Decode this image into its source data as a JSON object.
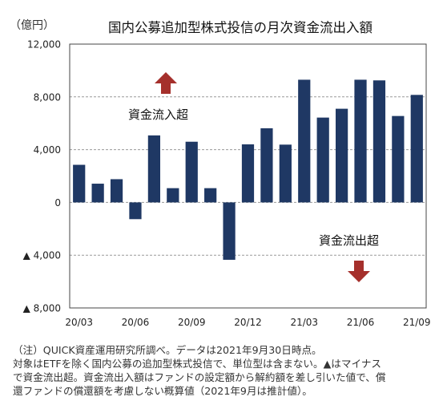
{
  "chart_data": {
    "type": "bar",
    "title": "国内公募追加型株式投信の月次資金流出入額",
    "unit_label": "（億円）",
    "categories": [
      "2020-03",
      "2020-04",
      "2020-05",
      "2020-06",
      "2020-07",
      "2020-08",
      "2020-09",
      "2020-10",
      "2020-11",
      "2020-12",
      "2021-01",
      "2021-02",
      "2021-03",
      "2021-04",
      "2021-05",
      "2021-06",
      "2021-07",
      "2021-08",
      "2021-09"
    ],
    "values": [
      2850,
      1420,
      1760,
      -1270,
      5080,
      1080,
      4600,
      1080,
      -4350,
      4400,
      5620,
      4380,
      9300,
      6430,
      7100,
      9300,
      9250,
      6550,
      8150
    ],
    "x_tick_labels": [
      {
        "category": "2020-03",
        "label": "20/03"
      },
      {
        "category": "2020-06",
        "label": "20/06"
      },
      {
        "category": "2020-09",
        "label": "20/09"
      },
      {
        "category": "2020-12",
        "label": "20/12"
      },
      {
        "category": "2021-03",
        "label": "21/03"
      },
      {
        "category": "2021-06",
        "label": "21/06"
      },
      {
        "category": "2021-09",
        "label": "21/09"
      }
    ],
    "y_ticks": [
      12000,
      8000,
      4000,
      0,
      -4000,
      -8000
    ],
    "y_tick_labels": [
      "12,000",
      "8,000",
      "4,000",
      "0",
      "▲ 4,000",
      "▲ 8,000"
    ],
    "ylim": [
      -8000,
      12000
    ],
    "grid": true,
    "bar_color": "#1f3864",
    "annotations": [
      {
        "text": "資金流入超",
        "arrow": "up",
        "arrow_color": "#a5302c"
      },
      {
        "text": "資金流出超",
        "arrow": "down",
        "arrow_color": "#a5302c"
      }
    ]
  },
  "notes": [
    "（注）QUICK資産運用研究所調べ。データは2021年9月30日時点。",
    "対象はETFを除く国内公募の追加型株式投信で、単位型は含まない。▲はマイナス",
    "で資金流出超。資金流出入額はファンドの設定額から解約額を差し引いた値で、償",
    "還ファンドの償還額を考慮しない概算値（2021年9月は推計値）。"
  ]
}
